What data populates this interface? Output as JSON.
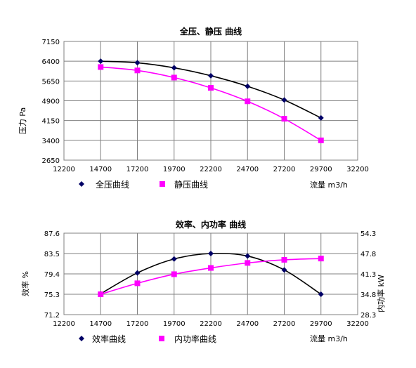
{
  "charts": {
    "pressure": {
      "title": "全压、静压 曲线",
      "ylabel": "压力 Pa",
      "xlabel": "流量 m3/h",
      "xticks": [
        "12200",
        "14700",
        "17200",
        "19700",
        "22200",
        "24700",
        "27200",
        "29700",
        "32200"
      ],
      "yticks": [
        "7150",
        "6400",
        "5650",
        "4900",
        "4150",
        "3400",
        "2650"
      ],
      "legend": {
        "s1": "全压曲线",
        "s2": "静压曲线"
      }
    },
    "efficiency": {
      "title": "效率、内功率 曲线",
      "ylabel": "效率 %",
      "ylabel_right": "内功率 kW",
      "xlabel": "流量 m3/h",
      "xticks": [
        "12200",
        "14700",
        "17200",
        "19700",
        "22200",
        "24700",
        "27200",
        "29700",
        "32200"
      ],
      "yticks": [
        "87.6",
        "83.5",
        "79.4",
        "75.3",
        "71.2"
      ],
      "yticks_right": [
        "54.3",
        "47.8",
        "41.3",
        "34.8",
        "28.3"
      ],
      "legend": {
        "s1": "效率曲线",
        "s2": "内功率曲线"
      }
    }
  },
  "chart_data": [
    {
      "type": "line",
      "title": "全压、静压 曲线",
      "xlabel": "流量 m3/h",
      "ylabel": "压力 Pa",
      "xlim": [
        12200,
        32200
      ],
      "ylim": [
        2650,
        7150
      ],
      "grid": true,
      "legend_position": "bottom",
      "x": [
        14700,
        17200,
        19700,
        22200,
        24700,
        27200,
        29700
      ],
      "series": [
        {
          "name": "全压曲线",
          "color": "#000066",
          "marker": "diamond",
          "values": [
            6400,
            6340,
            6150,
            5850,
            5450,
            4930,
            4250
          ]
        },
        {
          "name": "静压曲线",
          "color": "#ff00ff",
          "marker": "square",
          "values": [
            6180,
            6050,
            5780,
            5390,
            4880,
            4220,
            3400
          ]
        }
      ]
    },
    {
      "type": "line",
      "title": "效率、内功率 曲线",
      "xlabel": "流量 m3/h",
      "ylabel": "效率 %",
      "ylabel_right": "内功率 kW",
      "xlim": [
        12200,
        32200
      ],
      "ylim": [
        71.2,
        87.6
      ],
      "ylim_right": [
        28.3,
        54.3
      ],
      "grid": true,
      "legend_position": "bottom",
      "x": [
        14700,
        17200,
        19700,
        22200,
        24700,
        27200,
        29700
      ],
      "series": [
        {
          "name": "效率曲线",
          "color": "#000066",
          "marker": "diamond",
          "axis": "left",
          "values": [
            75.4,
            79.6,
            82.4,
            83.5,
            83.0,
            80.2,
            75.3
          ]
        },
        {
          "name": "内功率曲线",
          "color": "#ff00ff",
          "marker": "square",
          "axis": "right",
          "values": [
            34.8,
            38.3,
            41.2,
            43.2,
            44.8,
            45.8,
            46.2
          ]
        }
      ]
    }
  ]
}
